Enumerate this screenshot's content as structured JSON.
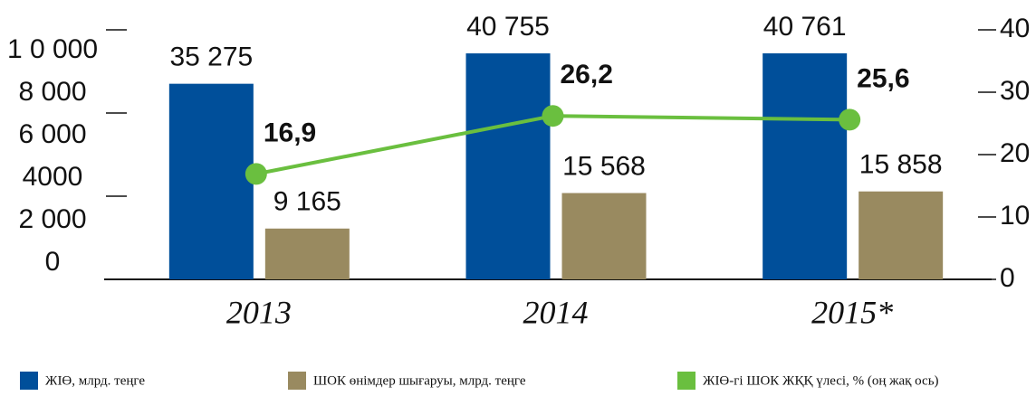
{
  "chart_data": {
    "type": "bar_line",
    "categories": [
      "2013",
      "2014",
      "2015*"
    ],
    "series": [
      {
        "name": "ЖІӨ, млрд. теңге",
        "color": "#004f9a",
        "values": [
          35275,
          40755,
          40761
        ],
        "value_labels": [
          "35 275",
          "40 755",
          "40 761"
        ]
      },
      {
        "name": "ШОК өнімдер шығаруы, млрд. теңге",
        "color": "#998a60",
        "values": [
          9165,
          15568,
          15858
        ],
        "value_labels": [
          "9 165",
          "15 568",
          "15 858"
        ]
      },
      {
        "name": "ЖІӨ-гі ШОК ЖҚҚ үлесі, % (оң жақ ось)",
        "color": "#6abf3f",
        "axis": "y2",
        "values": [
          16.9,
          26.2,
          25.6
        ],
        "value_labels": [
          "16,9",
          "26,2",
          "25,6"
        ]
      }
    ],
    "y_scale_labels": [
      "1 0 000",
      "8 000",
      "6 000",
      "4000",
      "2 000",
      "0"
    ],
    "ylim": [
      0,
      45000
    ],
    "yticks": [
      15000,
      30000,
      45000
    ],
    "y2lim": [
      0,
      40
    ],
    "y2ticks": [
      0,
      10,
      20,
      30,
      40
    ]
  }
}
